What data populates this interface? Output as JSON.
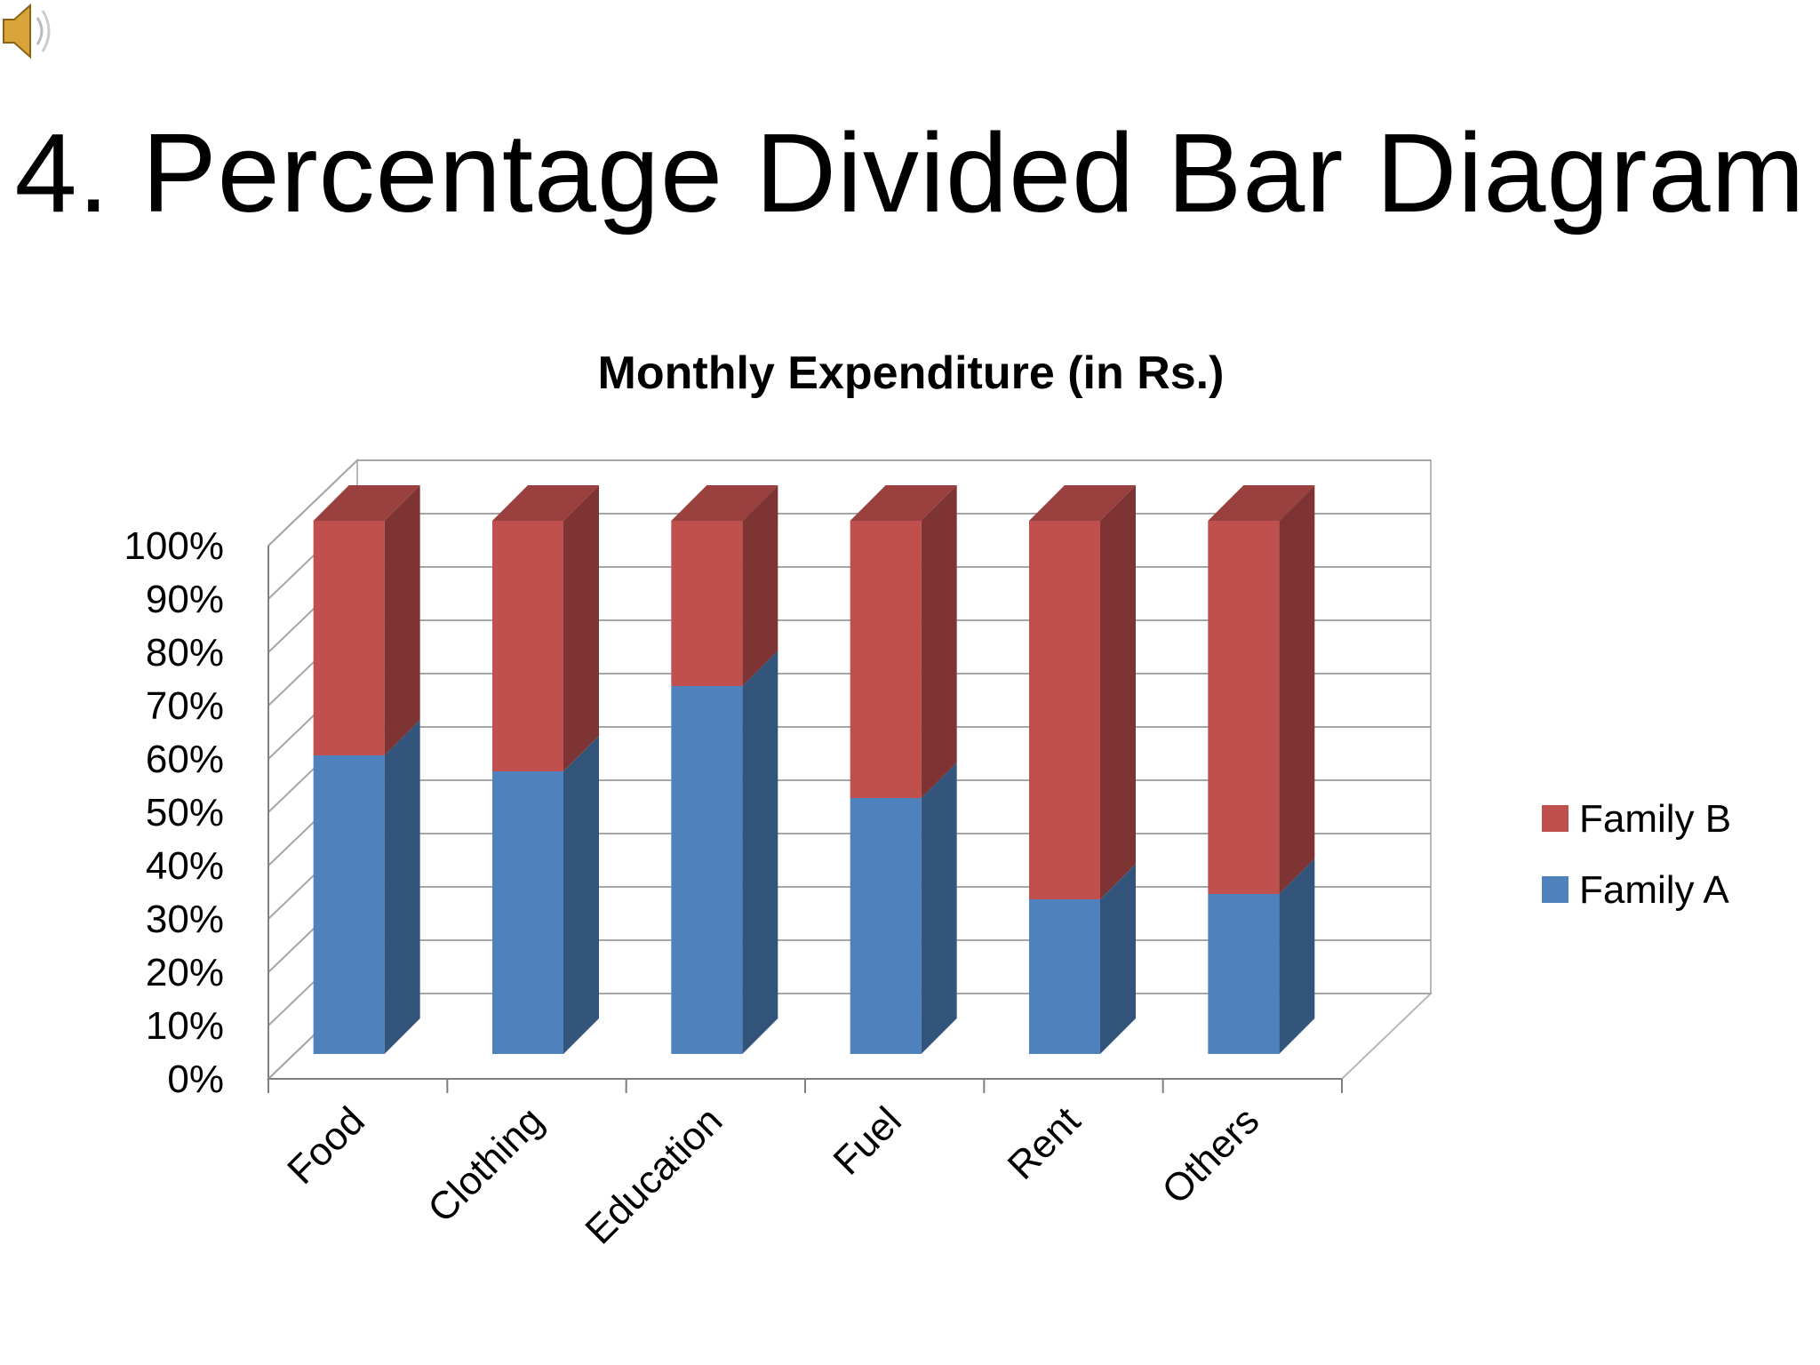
{
  "slide": {
    "title": "4. Percentage Divided Bar Diagram",
    "icon": "speaker-icon"
  },
  "chart_data": {
    "type": "bar",
    "stacked": true,
    "percent": true,
    "three_d": true,
    "title": "Monthly Expenditure (in Rs.)",
    "categories": [
      "Food",
      "Clothing",
      "Education",
      "Fuel",
      "Rent",
      "Others"
    ],
    "series": [
      {
        "name": "Family  A",
        "color": "#4f81bd",
        "values": [
          56,
          53,
          69,
          48,
          29,
          30
        ]
      },
      {
        "name": "Family B",
        "color": "#c0504d",
        "values": [
          44,
          47,
          31,
          52,
          71,
          70
        ]
      }
    ],
    "yticks": [
      "0%",
      "10%",
      "20%",
      "30%",
      "40%",
      "50%",
      "60%",
      "70%",
      "80%",
      "90%",
      "100%"
    ],
    "ylim": [
      0,
      100
    ],
    "grid": true,
    "legend": "right"
  }
}
